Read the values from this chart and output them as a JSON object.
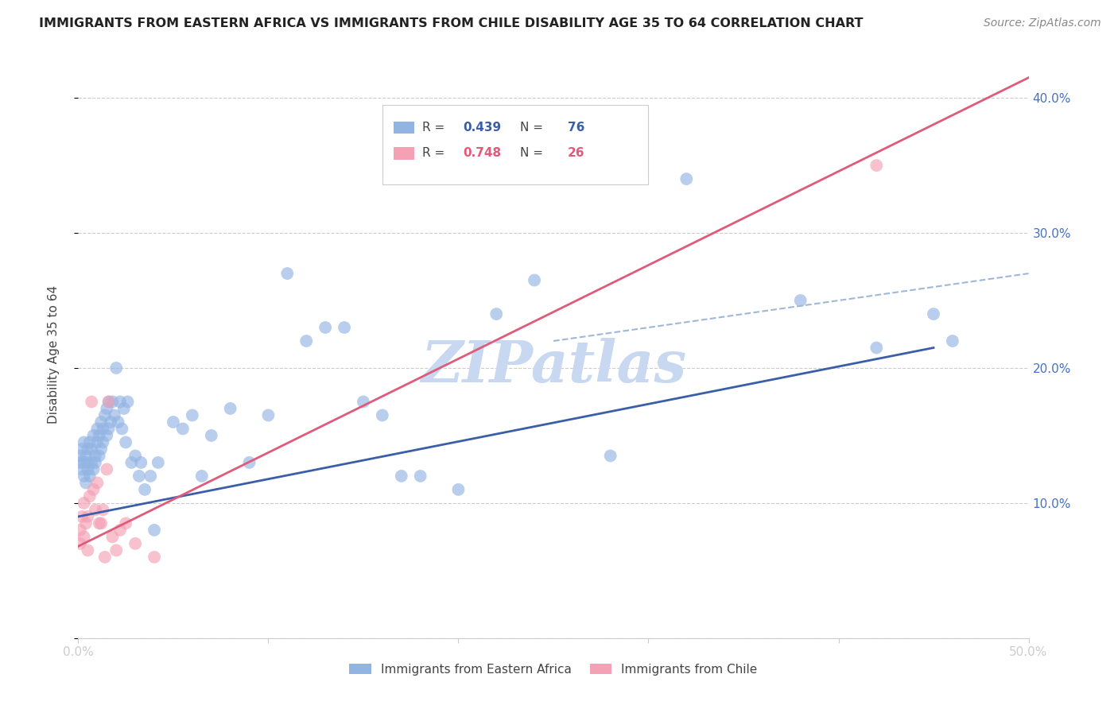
{
  "title": "IMMIGRANTS FROM EASTERN AFRICA VS IMMIGRANTS FROM CHILE DISABILITY AGE 35 TO 64 CORRELATION CHART",
  "source": "Source: ZipAtlas.com",
  "ylabel": "Disability Age 35 to 64",
  "xlim": [
    0.0,
    0.5
  ],
  "ylim": [
    0.0,
    0.42
  ],
  "xticks": [
    0.0,
    0.1,
    0.2,
    0.3,
    0.4,
    0.5
  ],
  "xticklabels": [
    "0.0%",
    "",
    "",
    "",
    "",
    "50.0%"
  ],
  "yticks": [
    0.0,
    0.1,
    0.2,
    0.3,
    0.4
  ],
  "yticklabels": [
    "",
    "10.0%",
    "20.0%",
    "30.0%",
    "40.0%"
  ],
  "blue_R": 0.439,
  "blue_N": 76,
  "pink_R": 0.748,
  "pink_N": 26,
  "blue_color": "#92b4e3",
  "pink_color": "#f4a0b5",
  "blue_line_color": "#3a5fa8",
  "pink_line_color": "#e05a7a",
  "dashed_line_color": "#a0b8d8",
  "watermark": "ZIPatlas",
  "watermark_color": "#c8d8f0",
  "background_color": "#ffffff",
  "blue_scatter_x": [
    0.001,
    0.001,
    0.002,
    0.002,
    0.003,
    0.003,
    0.003,
    0.004,
    0.004,
    0.005,
    0.005,
    0.005,
    0.006,
    0.006,
    0.007,
    0.007,
    0.008,
    0.008,
    0.009,
    0.009,
    0.01,
    0.01,
    0.011,
    0.011,
    0.012,
    0.012,
    0.013,
    0.013,
    0.014,
    0.015,
    0.015,
    0.016,
    0.016,
    0.017,
    0.018,
    0.019,
    0.02,
    0.021,
    0.022,
    0.023,
    0.024,
    0.025,
    0.026,
    0.028,
    0.03,
    0.032,
    0.033,
    0.035,
    0.038,
    0.04,
    0.042,
    0.05,
    0.055,
    0.06,
    0.065,
    0.07,
    0.08,
    0.09,
    0.1,
    0.11,
    0.12,
    0.13,
    0.14,
    0.15,
    0.16,
    0.17,
    0.18,
    0.2,
    0.22,
    0.24,
    0.28,
    0.32,
    0.38,
    0.42,
    0.45,
    0.46
  ],
  "blue_scatter_y": [
    0.13,
    0.135,
    0.125,
    0.14,
    0.12,
    0.13,
    0.145,
    0.115,
    0.135,
    0.125,
    0.14,
    0.13,
    0.12,
    0.145,
    0.13,
    0.14,
    0.125,
    0.15,
    0.13,
    0.135,
    0.145,
    0.155,
    0.135,
    0.15,
    0.14,
    0.16,
    0.145,
    0.155,
    0.165,
    0.15,
    0.17,
    0.155,
    0.175,
    0.16,
    0.175,
    0.165,
    0.2,
    0.16,
    0.175,
    0.155,
    0.17,
    0.145,
    0.175,
    0.13,
    0.135,
    0.12,
    0.13,
    0.11,
    0.12,
    0.08,
    0.13,
    0.16,
    0.155,
    0.165,
    0.12,
    0.15,
    0.17,
    0.13,
    0.165,
    0.27,
    0.22,
    0.23,
    0.23,
    0.175,
    0.165,
    0.12,
    0.12,
    0.11,
    0.24,
    0.265,
    0.135,
    0.34,
    0.25,
    0.215,
    0.24,
    0.22
  ],
  "pink_scatter_x": [
    0.001,
    0.001,
    0.002,
    0.003,
    0.003,
    0.004,
    0.005,
    0.005,
    0.006,
    0.007,
    0.008,
    0.009,
    0.01,
    0.011,
    0.012,
    0.013,
    0.014,
    0.015,
    0.016,
    0.018,
    0.02,
    0.022,
    0.025,
    0.03,
    0.04,
    0.42
  ],
  "pink_scatter_y": [
    0.07,
    0.08,
    0.09,
    0.075,
    0.1,
    0.085,
    0.09,
    0.065,
    0.105,
    0.175,
    0.11,
    0.095,
    0.115,
    0.085,
    0.085,
    0.095,
    0.06,
    0.125,
    0.175,
    0.075,
    0.065,
    0.08,
    0.085,
    0.07,
    0.06,
    0.35
  ],
  "blue_trend_x": [
    0.0,
    0.45
  ],
  "blue_trend_y": [
    0.09,
    0.215
  ],
  "pink_trend_x": [
    0.0,
    0.5
  ],
  "pink_trend_y": [
    0.068,
    0.415
  ],
  "dashed_trend_x": [
    0.25,
    0.5
  ],
  "dashed_trend_y": [
    0.22,
    0.27
  ]
}
